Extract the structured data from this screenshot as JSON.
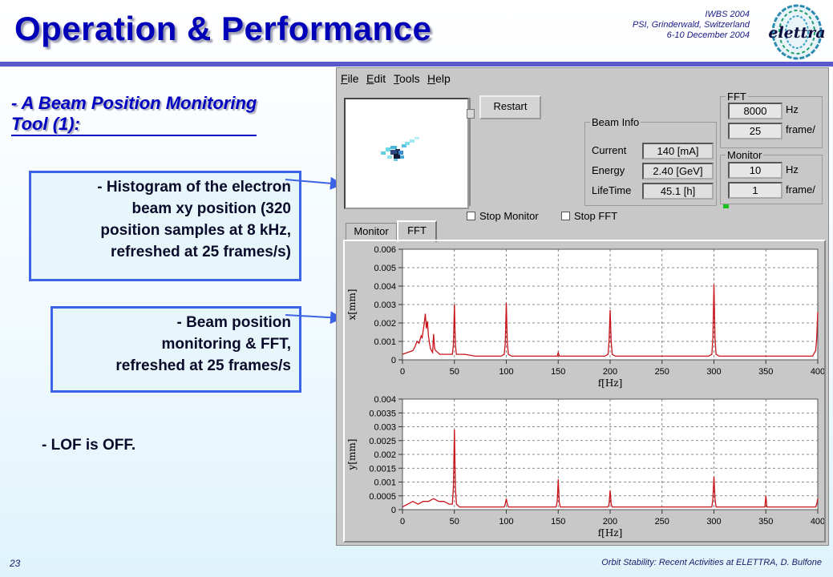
{
  "slide": {
    "title": "Operation & Performance",
    "conference": [
      "IWBS 2004",
      "PSI, Grinderwald, Switzerland",
      "6-10 December 2004"
    ],
    "logo_text": "elettra",
    "subtitle_line1": "- A Beam Position Monitoring",
    "subtitle_line2": "Tool (1):",
    "callout1": [
      "- Histogram of the electron",
      "beam xy position (320",
      "position samples at 8 kHz,",
      "refreshed at 25 frames/s)"
    ],
    "callout2": [
      "- Beam position",
      "monitoring & FFT,",
      "refreshed at 25 frames/s"
    ],
    "note": "- LOF is OFF.",
    "page_number": "23",
    "footer": "Orbit Stability: Recent Activities at ELETTRA, D. Bulfone"
  },
  "app": {
    "menu": [
      {
        "first": "F",
        "rest": "ile"
      },
      {
        "first": "E",
        "rest": "dit"
      },
      {
        "first": "T",
        "rest": "ools"
      },
      {
        "first": "H",
        "rest": "elp"
      }
    ],
    "restart_label": "Restart",
    "beam_info": {
      "legend": "Beam Info",
      "current_label": "Current",
      "current_value": "140 [mA]",
      "energy_label": "Energy",
      "energy_value": "2.40 [GeV]",
      "lifetime_label": "LifeTime",
      "lifetime_value": "45.1 [h]"
    },
    "fft": {
      "legend": "FFT",
      "rate_value": "8000",
      "rate_unit": "Hz",
      "frames_value": "25",
      "frames_unit": "frame/"
    },
    "monitor": {
      "legend": "Monitor",
      "rate_value": "10",
      "rate_unit": "Hz",
      "frames_value": "1",
      "frames_unit": "frame/"
    },
    "stop_monitor_label": "Stop Monitor",
    "stop_fft_label": "Stop FFT",
    "tabs": [
      "Monitor",
      "FFT"
    ],
    "active_tab": "FFT",
    "colors": {
      "trace": "#c8141a",
      "window": "#c8c8c8",
      "accent": "#0000b8"
    }
  },
  "chart_data": [
    {
      "type": "line",
      "xlabel": "f[Hz]",
      "ylabel": "x[mm]",
      "xlim": [
        0,
        400
      ],
      "ylim": [
        0,
        0.006
      ],
      "xticks": [
        "0",
        "50",
        "100",
        "150",
        "200",
        "250",
        "300",
        "350",
        "400"
      ],
      "yticks": [
        "0",
        "0.001",
        "0.002",
        "0.003",
        "0.004",
        "0.005",
        "0.006"
      ],
      "grid": true,
      "series": [
        {
          "x": [
            0,
            5,
            10,
            12,
            14,
            16,
            18,
            19,
            20,
            21,
            22,
            23,
            24,
            25,
            26,
            27,
            28,
            29,
            30,
            31,
            32,
            34,
            36,
            38,
            40,
            45,
            48,
            49,
            50,
            51,
            52,
            55,
            60,
            70,
            80,
            90,
            95,
            98,
            99,
            100,
            101,
            102,
            105,
            110,
            120,
            130,
            140,
            145,
            149,
            150,
            151,
            155,
            160,
            170,
            180,
            190,
            195,
            198,
            199,
            200,
            201,
            202,
            205,
            210,
            220,
            230,
            240,
            250,
            260,
            270,
            280,
            290,
            295,
            298,
            299,
            300,
            301,
            302,
            305,
            310,
            320,
            330,
            340,
            350,
            360,
            370,
            380,
            390,
            395,
            398,
            399,
            400
          ],
          "y": [
            0.0003,
            0.0004,
            0.0005,
            0.0007,
            0.001,
            0.0009,
            0.0013,
            0.0012,
            0.0016,
            0.002,
            0.0025,
            0.0017,
            0.0021,
            0.0013,
            0.0009,
            0.0006,
            0.0005,
            0.0004,
            0.0014,
            0.0006,
            0.0005,
            0.0004,
            0.0003,
            0.0003,
            0.0003,
            0.0003,
            0.0003,
            0.0008,
            0.003,
            0.0008,
            0.0003,
            0.0003,
            0.0003,
            0.0002,
            0.0002,
            0.0002,
            0.0002,
            0.0003,
            0.0009,
            0.0031,
            0.0009,
            0.0003,
            0.0002,
            0.0002,
            0.0002,
            0.0002,
            0.0002,
            0.0002,
            0.0002,
            0.0004,
            0.0002,
            0.0002,
            0.0002,
            0.0002,
            0.0002,
            0.0002,
            0.0002,
            0.0003,
            0.001,
            0.0027,
            0.001,
            0.0003,
            0.0002,
            0.0002,
            0.0002,
            0.0002,
            0.0002,
            0.0002,
            0.0002,
            0.0002,
            0.0002,
            0.0002,
            0.0002,
            0.0003,
            0.0012,
            0.0041,
            0.0012,
            0.0003,
            0.0002,
            0.0002,
            0.0002,
            0.0002,
            0.0002,
            0.0002,
            0.0002,
            0.0002,
            0.0002,
            0.0002,
            0.0002,
            0.0005,
            0.0012,
            0.0026
          ]
        }
      ]
    },
    {
      "type": "line",
      "xlabel": "f[Hz]",
      "ylabel": "y[mm]",
      "xlim": [
        0,
        400
      ],
      "ylim": [
        0,
        0.004
      ],
      "xticks": [
        "0",
        "50",
        "100",
        "150",
        "200",
        "250",
        "300",
        "350",
        "400"
      ],
      "yticks": [
        "0",
        "0.0005",
        "0.001",
        "0.0015",
        "0.002",
        "0.0025",
        "0.003",
        "0.0035",
        "0.004"
      ],
      "grid": true,
      "series": [
        {
          "x": [
            0,
            5,
            10,
            15,
            20,
            25,
            30,
            35,
            40,
            45,
            48,
            49,
            50,
            51,
            52,
            55,
            60,
            70,
            80,
            90,
            98,
            99,
            100,
            101,
            102,
            110,
            120,
            130,
            140,
            148,
            149,
            150,
            151,
            152,
            160,
            170,
            180,
            190,
            198,
            199,
            200,
            201,
            202,
            210,
            220,
            230,
            240,
            250,
            260,
            270,
            280,
            290,
            298,
            299,
            300,
            301,
            302,
            310,
            320,
            330,
            340,
            348,
            349,
            350,
            351,
            352,
            360,
            370,
            380,
            390,
            398,
            399,
            400
          ],
          "y": [
            0.0001,
            0.0002,
            0.0003,
            0.0002,
            0.0003,
            0.0003,
            0.0004,
            0.0003,
            0.0003,
            0.0002,
            0.0002,
            0.0008,
            0.0029,
            0.0008,
            0.0002,
            0.0001,
            0.0001,
            0.0001,
            0.0001,
            0.0001,
            0.0001,
            0.0002,
            0.0004,
            0.0002,
            0.0001,
            0.0001,
            0.0001,
            0.0001,
            0.0001,
            0.0001,
            0.0003,
            0.0011,
            0.0003,
            0.0001,
            0.0001,
            0.0001,
            0.0001,
            0.0001,
            0.0001,
            0.0002,
            0.0007,
            0.0002,
            0.0001,
            0.0001,
            0.0001,
            0.0001,
            0.0001,
            0.0001,
            0.0001,
            0.0001,
            0.0001,
            0.0001,
            0.0001,
            0.0004,
            0.0012,
            0.0004,
            0.0001,
            0.0001,
            0.0001,
            0.0001,
            0.0001,
            0.0001,
            0.0001,
            0.0005,
            0.0001,
            0.0001,
            0.0001,
            0.0001,
            0.0001,
            0.0001,
            0.0001,
            0.0002,
            0.0004
          ]
        }
      ]
    }
  ]
}
